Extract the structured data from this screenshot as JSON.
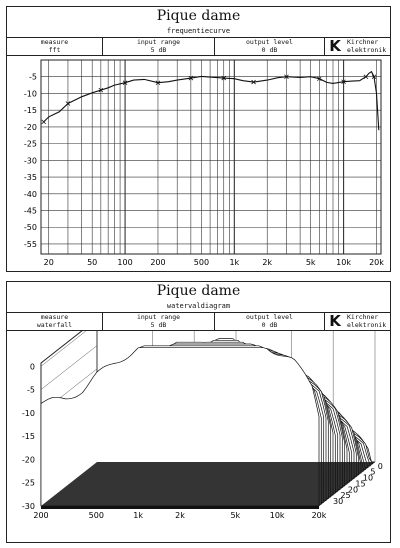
{
  "panels": [
    {
      "title": "Pique dame",
      "subtitle": "frequentiecurve",
      "measure_label": "measure",
      "measure_value": "fft",
      "input_label": "input range",
      "input_value": "5 dB",
      "output_label": "output level",
      "output_value": "0 dB",
      "logo": "K",
      "brand_line1": "Kirchner",
      "brand_line2": "elektronik"
    },
    {
      "title": "Pique dame",
      "subtitle": "watervaldiagram",
      "measure_label": "measure",
      "measure_value": "waterfall",
      "input_label": "input range",
      "input_value": "5 dB",
      "output_label": "output level",
      "output_value": "0 dB",
      "logo": "K",
      "brand_line1": "Kirchner",
      "brand_line2": "elektronik"
    }
  ],
  "chart_data": [
    {
      "type": "line",
      "xscale": "log",
      "xlim": [
        17,
        22000
      ],
      "ylim": [
        -58,
        0
      ],
      "x_ticks": [
        "20",
        "50",
        "100",
        "200",
        "500",
        "1k",
        "2k",
        "5k",
        "10k",
        "20k"
      ],
      "x_tick_values": [
        20,
        50,
        100,
        200,
        500,
        1000,
        2000,
        5000,
        10000,
        20000
      ],
      "y_ticks": [
        "-5",
        "-10",
        "-15",
        "-20",
        "-25",
        "-30",
        "-35",
        "-40",
        "-45",
        "-50",
        "-55"
      ],
      "y_tick_values": [
        -5,
        -10,
        -15,
        -20,
        -25,
        -30,
        -35,
        -40,
        -45,
        -50,
        -55
      ],
      "grid": true,
      "series": [
        {
          "x": [
            18,
            20,
            25,
            30,
            40,
            50,
            60,
            70,
            80,
            100,
            120,
            150,
            200,
            250,
            300,
            400,
            500,
            600,
            800,
            1000,
            1200,
            1500,
            2000,
            2500,
            3000,
            4000,
            5000,
            6000,
            7000,
            8000,
            10000,
            12000,
            14000,
            16000,
            17000,
            18000,
            19000,
            20000,
            21000
          ],
          "y": [
            -18.5,
            -17,
            -15.5,
            -13,
            -11,
            -9.8,
            -9,
            -8.3,
            -7.5,
            -6.8,
            -6,
            -5.8,
            -6.8,
            -6.5,
            -6,
            -5.4,
            -4.9,
            -5.1,
            -5.4,
            -5.6,
            -6.2,
            -6.6,
            -6,
            -5.3,
            -5,
            -5.2,
            -5,
            -5.6,
            -6.7,
            -7,
            -6.5,
            -6.3,
            -6.2,
            -5,
            -4,
            -3.5,
            -5,
            -10,
            -21
          ]
        }
      ]
    },
    {
      "type": "area",
      "xscale": "log",
      "xlim": [
        200,
        20000
      ],
      "ylim": [
        -30,
        5
      ],
      "x_ticks": [
        "200",
        "500",
        "1k",
        "2k",
        "5k",
        "10k",
        "20k"
      ],
      "x_tick_values": [
        200,
        500,
        1000,
        2000,
        5000,
        10000,
        20000
      ],
      "y_ticks": [
        "0",
        "-5",
        "-10",
        "-15",
        "-20",
        "-25",
        "-30"
      ],
      "y_tick_values": [
        0,
        -5,
        -10,
        -15,
        -20,
        -25,
        -30
      ],
      "z_ticks": [
        "0",
        "5",
        "10",
        "15",
        "20",
        "25",
        "30"
      ],
      "z_tick_values": [
        0,
        5,
        10,
        15,
        20,
        25,
        30
      ],
      "grid": true,
      "envelope_x": [
        200,
        300,
        400,
        500,
        700,
        1000,
        1500,
        2000,
        3000,
        4000,
        5000,
        7000,
        10000,
        13000,
        16000,
        18000,
        20000
      ],
      "envelope_y": [
        -26,
        -25,
        -23,
        -20,
        -17,
        -14,
        -12,
        -11,
        -10,
        -9,
        -11,
        -12,
        -15,
        -17,
        -20,
        -22,
        -28
      ]
    }
  ]
}
